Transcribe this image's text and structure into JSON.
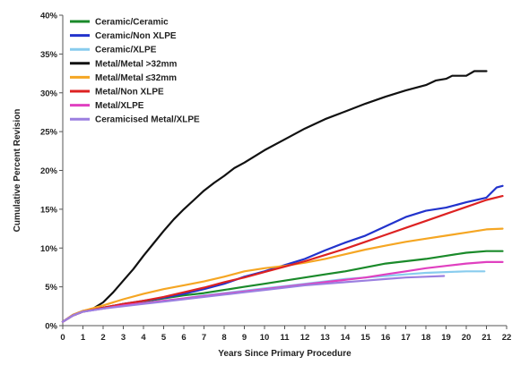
{
  "chart_data": {
    "type": "line",
    "title": "",
    "xlabel": "Years Since Primary Procedure",
    "ylabel": "Cumulative Percent Revision",
    "xlim": [
      0,
      22
    ],
    "ylim": [
      0,
      40
    ],
    "x_ticks": [
      0,
      1,
      2,
      3,
      4,
      5,
      6,
      7,
      8,
      9,
      10,
      11,
      12,
      13,
      14,
      15,
      16,
      17,
      18,
      19,
      20,
      21,
      22
    ],
    "y_ticks": [
      0,
      5,
      10,
      15,
      20,
      25,
      30,
      35,
      40
    ],
    "y_tick_labels": [
      "0%",
      "5%",
      "10%",
      "15%",
      "20%",
      "25%",
      "30%",
      "35%",
      "40%"
    ],
    "grid": false,
    "legend_position": "top-left",
    "series": [
      {
        "name": "Ceramic/Ceramic",
        "color": "#1a8a2a",
        "points": [
          [
            0,
            0.5
          ],
          [
            0.5,
            1.3
          ],
          [
            1,
            1.8
          ],
          [
            2,
            2.3
          ],
          [
            3,
            2.8
          ],
          [
            4,
            3.1
          ],
          [
            5,
            3.5
          ],
          [
            6,
            3.9
          ],
          [
            7,
            4.2
          ],
          [
            8,
            4.6
          ],
          [
            9,
            5.0
          ],
          [
            10,
            5.4
          ],
          [
            11,
            5.8
          ],
          [
            12,
            6.2
          ],
          [
            13,
            6.6
          ],
          [
            14,
            7.0
          ],
          [
            15,
            7.5
          ],
          [
            16,
            8.0
          ],
          [
            17,
            8.3
          ],
          [
            18,
            8.6
          ],
          [
            19,
            9.0
          ],
          [
            20,
            9.4
          ],
          [
            21,
            9.6
          ],
          [
            21.8,
            9.6
          ]
        ]
      },
      {
        "name": "Ceramic/Non XLPE",
        "color": "#2233cc",
        "points": [
          [
            0,
            0.5
          ],
          [
            0.5,
            1.4
          ],
          [
            1,
            1.9
          ],
          [
            2,
            2.3
          ],
          [
            3,
            2.8
          ],
          [
            4,
            3.2
          ],
          [
            5,
            3.6
          ],
          [
            6,
            4.1
          ],
          [
            7,
            4.7
          ],
          [
            8,
            5.4
          ],
          [
            9,
            6.3
          ],
          [
            10,
            7.0
          ],
          [
            11,
            7.8
          ],
          [
            12,
            8.6
          ],
          [
            13,
            9.7
          ],
          [
            14,
            10.7
          ],
          [
            15,
            11.6
          ],
          [
            16,
            12.8
          ],
          [
            17,
            14.0
          ],
          [
            18,
            14.8
          ],
          [
            19,
            15.2
          ],
          [
            20,
            15.9
          ],
          [
            21,
            16.5
          ],
          [
            21.5,
            17.8
          ],
          [
            21.8,
            18.0
          ]
        ]
      },
      {
        "name": "Ceramic/XLPE",
        "color": "#88ccee",
        "points": [
          [
            0,
            0.5
          ],
          [
            0.5,
            1.3
          ],
          [
            1,
            1.8
          ],
          [
            2,
            2.2
          ],
          [
            3,
            2.6
          ],
          [
            4,
            2.9
          ],
          [
            5,
            3.2
          ],
          [
            6,
            3.5
          ],
          [
            7,
            3.9
          ],
          [
            8,
            4.2
          ],
          [
            9,
            4.5
          ],
          [
            10,
            4.8
          ],
          [
            11,
            5.1
          ],
          [
            12,
            5.4
          ],
          [
            13,
            5.7
          ],
          [
            14,
            6.0
          ],
          [
            15,
            6.2
          ],
          [
            16,
            6.4
          ],
          [
            17,
            6.6
          ],
          [
            18,
            6.8
          ],
          [
            19,
            6.9
          ],
          [
            20,
            7.0
          ],
          [
            20.9,
            7.0
          ]
        ]
      },
      {
        "name": "Metal/Metal >32mm",
        "color": "#111111",
        "points": [
          [
            0,
            0.5
          ],
          [
            0.5,
            1.3
          ],
          [
            1,
            1.8
          ],
          [
            1.5,
            2.2
          ],
          [
            2,
            3.0
          ],
          [
            2.5,
            4.3
          ],
          [
            3,
            5.8
          ],
          [
            3.5,
            7.3
          ],
          [
            4,
            9.0
          ],
          [
            4.5,
            10.6
          ],
          [
            5,
            12.2
          ],
          [
            5.5,
            13.7
          ],
          [
            6,
            15.0
          ],
          [
            6.5,
            16.2
          ],
          [
            7,
            17.4
          ],
          [
            7.5,
            18.4
          ],
          [
            8,
            19.3
          ],
          [
            8.5,
            20.3
          ],
          [
            9,
            21.0
          ],
          [
            10,
            22.6
          ],
          [
            11,
            24.0
          ],
          [
            12,
            25.4
          ],
          [
            13,
            26.6
          ],
          [
            14,
            27.6
          ],
          [
            15,
            28.6
          ],
          [
            16,
            29.5
          ],
          [
            17,
            30.3
          ],
          [
            18,
            31.0
          ],
          [
            18.5,
            31.6
          ],
          [
            19,
            31.8
          ],
          [
            19.3,
            32.2
          ],
          [
            20,
            32.2
          ],
          [
            20.4,
            32.8
          ],
          [
            21,
            32.8
          ]
        ]
      },
      {
        "name": "Metal/Metal ≤32mm",
        "color": "#f5a623",
        "points": [
          [
            0,
            0.5
          ],
          [
            0.5,
            1.4
          ],
          [
            1,
            1.9
          ],
          [
            2,
            2.6
          ],
          [
            3,
            3.4
          ],
          [
            4,
            4.1
          ],
          [
            5,
            4.7
          ],
          [
            6,
            5.2
          ],
          [
            7,
            5.7
          ],
          [
            8,
            6.3
          ],
          [
            9,
            7.0
          ],
          [
            10,
            7.4
          ],
          [
            11,
            7.7
          ],
          [
            12,
            8.1
          ],
          [
            13,
            8.6
          ],
          [
            14,
            9.2
          ],
          [
            15,
            9.8
          ],
          [
            16,
            10.3
          ],
          [
            17,
            10.8
          ],
          [
            18,
            11.2
          ],
          [
            19,
            11.6
          ],
          [
            20,
            12.0
          ],
          [
            21,
            12.4
          ],
          [
            21.8,
            12.5
          ]
        ]
      },
      {
        "name": "Metal/Non XLPE",
        "color": "#dd2222",
        "points": [
          [
            0,
            0.5
          ],
          [
            0.5,
            1.3
          ],
          [
            1,
            1.8
          ],
          [
            2,
            2.3
          ],
          [
            3,
            2.8
          ],
          [
            4,
            3.2
          ],
          [
            5,
            3.7
          ],
          [
            6,
            4.3
          ],
          [
            7,
            4.9
          ],
          [
            8,
            5.6
          ],
          [
            9,
            6.2
          ],
          [
            10,
            6.9
          ],
          [
            11,
            7.6
          ],
          [
            12,
            8.3
          ],
          [
            13,
            9.1
          ],
          [
            14,
            9.9
          ],
          [
            15,
            10.8
          ],
          [
            16,
            11.7
          ],
          [
            17,
            12.6
          ],
          [
            18,
            13.5
          ],
          [
            19,
            14.4
          ],
          [
            20,
            15.3
          ],
          [
            21,
            16.2
          ],
          [
            21.8,
            16.7
          ]
        ]
      },
      {
        "name": "Metal/XLPE",
        "color": "#e040c0",
        "points": [
          [
            0,
            0.5
          ],
          [
            0.5,
            1.3
          ],
          [
            1,
            1.8
          ],
          [
            2,
            2.2
          ],
          [
            3,
            2.6
          ],
          [
            4,
            2.9
          ],
          [
            5,
            3.2
          ],
          [
            6,
            3.5
          ],
          [
            7,
            3.8
          ],
          [
            8,
            4.1
          ],
          [
            9,
            4.4
          ],
          [
            10,
            4.7
          ],
          [
            11,
            5.0
          ],
          [
            12,
            5.3
          ],
          [
            13,
            5.6
          ],
          [
            14,
            5.9
          ],
          [
            15,
            6.2
          ],
          [
            16,
            6.6
          ],
          [
            17,
            7.0
          ],
          [
            18,
            7.4
          ],
          [
            19,
            7.7
          ],
          [
            20,
            8.0
          ],
          [
            21,
            8.2
          ],
          [
            21.8,
            8.2
          ]
        ]
      },
      {
        "name": "Ceramicised Metal/XLPE",
        "color": "#9b7fe0",
        "points": [
          [
            0,
            0.5
          ],
          [
            0.5,
            1.3
          ],
          [
            1,
            1.8
          ],
          [
            2,
            2.2
          ],
          [
            3,
            2.5
          ],
          [
            4,
            2.8
          ],
          [
            5,
            3.1
          ],
          [
            6,
            3.4
          ],
          [
            7,
            3.7
          ],
          [
            8,
            4.0
          ],
          [
            9,
            4.3
          ],
          [
            10,
            4.6
          ],
          [
            11,
            4.9
          ],
          [
            12,
            5.2
          ],
          [
            13,
            5.4
          ],
          [
            14,
            5.6
          ],
          [
            15,
            5.8
          ],
          [
            16,
            6.0
          ],
          [
            17,
            6.2
          ],
          [
            18,
            6.3
          ],
          [
            18.9,
            6.4
          ]
        ]
      }
    ]
  }
}
